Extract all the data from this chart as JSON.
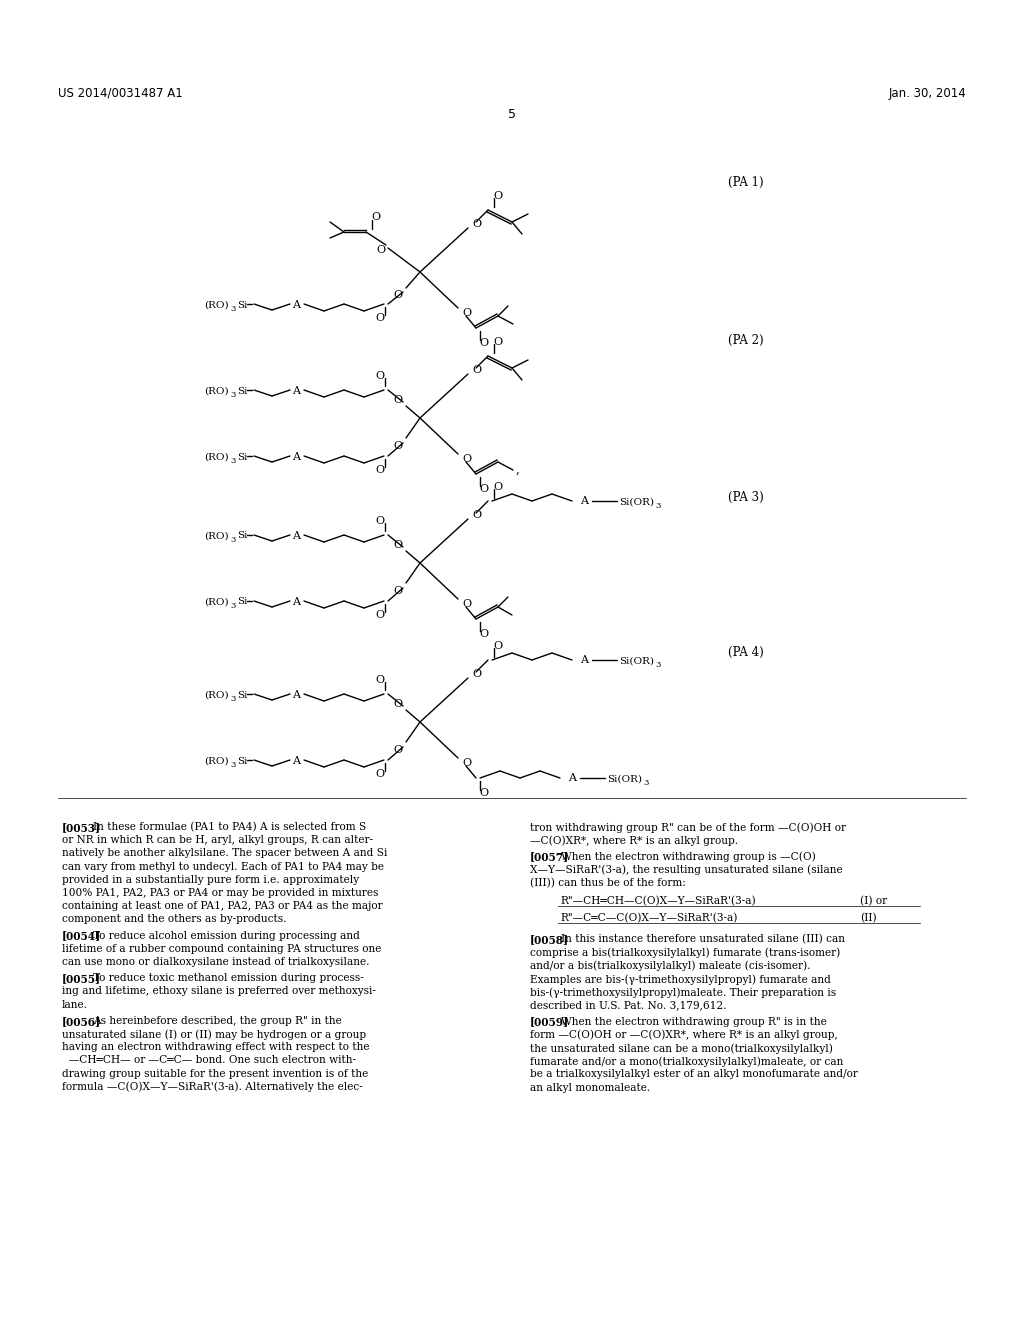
{
  "bg_color": "#ffffff",
  "text_color": "#000000",
  "header_left": "US 2014/0031487 A1",
  "header_right": "Jan. 30, 2014",
  "page_number": "5",
  "fig_width": 10.24,
  "fig_height": 13.2,
  "dpi": 100,
  "pa_labels": [
    "(PA 1)",
    "(PA 2)",
    "(PA 3)",
    "(PA 4)"
  ]
}
